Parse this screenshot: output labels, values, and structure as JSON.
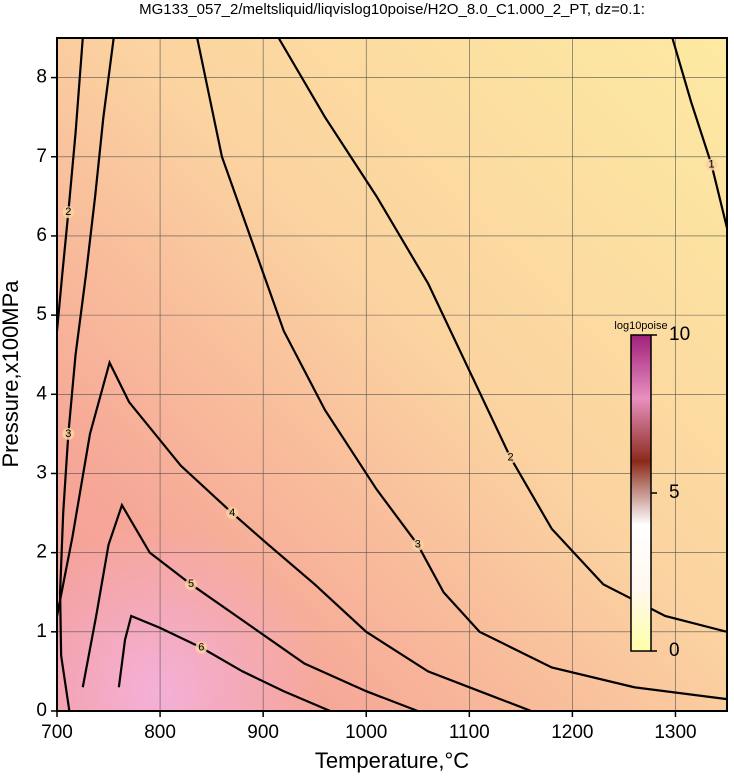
{
  "chart_data": {
    "type": "contour",
    "title": "MG133_057_2/meltsliquid/liqvislog10poise/H2O_8.0_C1.000_2_PT, dz=0.1:",
    "x_label": "Temperature,°C",
    "y_label": "Pressure,x100MPa",
    "xlim": [
      700,
      1350
    ],
    "ylim": [
      0,
      8.5
    ],
    "xticks": [
      700,
      800,
      900,
      1000,
      1100,
      1200,
      1300
    ],
    "yticks": [
      0,
      1,
      2,
      3,
      4,
      5,
      6,
      7,
      8
    ],
    "grid": true,
    "contour_color": "#000000",
    "contours": [
      {
        "level": 1,
        "x": [
          1297,
          1315,
          1335,
          1350
        ],
        "y": [
          8.5,
          7.7,
          6.9,
          6.1
        ]
      },
      {
        "level": 2,
        "x": [
          915,
          960,
          1010,
          1060,
          1100,
          1140,
          1180,
          1230,
          1290,
          1350
        ],
        "y": [
          8.5,
          7.5,
          6.5,
          5.4,
          4.3,
          3.2,
          2.3,
          1.6,
          1.2,
          1.0
        ]
      },
      {
        "level": 2,
        "x": [
          725,
          718,
          711,
          705,
          700
        ],
        "y": [
          8.5,
          7.3,
          6.3,
          5.5,
          4.8
        ]
      },
      {
        "level": 3,
        "x": [
          836,
          860,
          890,
          920,
          960,
          1010,
          1050,
          1075,
          1110,
          1180,
          1260,
          1350
        ],
        "y": [
          8.5,
          7.0,
          5.9,
          4.8,
          3.8,
          2.8,
          2.1,
          1.5,
          1.0,
          0.55,
          0.3,
          0.15
        ]
      },
      {
        "level": 3,
        "x": [
          755,
          745,
          737,
          728,
          718,
          711,
          706,
          703,
          704,
          712
        ],
        "y": [
          8.5,
          7.5,
          6.5,
          5.5,
          4.5,
          3.5,
          2.5,
          1.5,
          0.7,
          0
        ]
      },
      {
        "level": 4,
        "x": [
          700,
          715,
          732,
          751,
          770,
          820,
          870,
          905,
          950,
          1000,
          1060,
          1120,
          1160
        ],
        "y": [
          1.2,
          2.2,
          3.5,
          4.4,
          3.9,
          3.1,
          2.5,
          2.1,
          1.6,
          1.0,
          0.5,
          0.2,
          0
        ]
      },
      {
        "level": 5,
        "x": [
          725,
          738,
          750,
          763,
          790,
          830,
          885,
          940,
          1000,
          1050
        ],
        "y": [
          0.3,
          1.2,
          2.1,
          2.6,
          2.0,
          1.6,
          1.1,
          0.6,
          0.25,
          0
        ]
      },
      {
        "level": 6,
        "x": [
          760,
          766,
          772,
          800,
          840,
          880,
          920,
          965
        ],
        "y": [
          0.3,
          0.9,
          1.2,
          1.05,
          0.8,
          0.5,
          0.25,
          0
        ]
      }
    ],
    "colorbar": {
      "label": "log10poise",
      "lim": [
        0,
        10
      ],
      "ticks": [
        0,
        5,
        10
      ],
      "colors": [
        "#ffffa8",
        "#fff8f0",
        "#ffffff",
        "#8a2a1a",
        "#e890c0",
        "#a0207a"
      ]
    }
  }
}
